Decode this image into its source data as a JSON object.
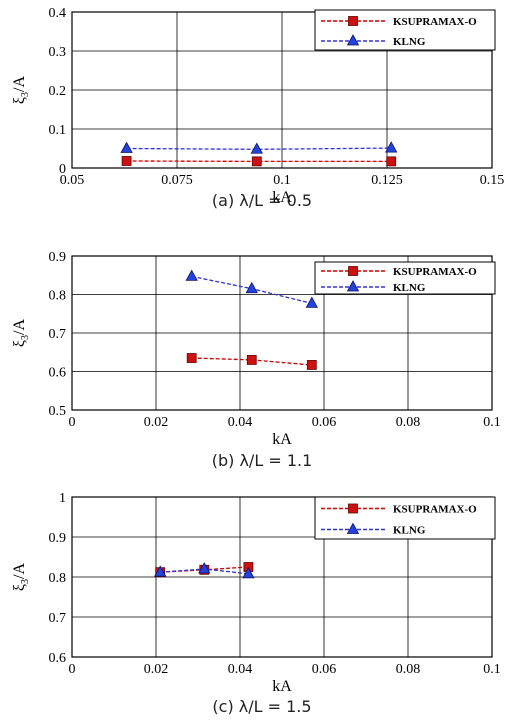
{
  "chart_data": [
    {
      "type": "line",
      "caption": "(a)  λ/L = 0.5",
      "xlabel": "kA",
      "ylabel": "ξ3/A",
      "xlim": [
        0.05,
        0.15
      ],
      "ylim": [
        0,
        0.4
      ],
      "xticks": [
        0.05,
        0.075,
        0.1,
        0.125,
        0.15
      ],
      "xtick_labels": [
        "0.05",
        "0.075",
        "0.1",
        "0.125",
        "0.15"
      ],
      "yticks": [
        0,
        0.1,
        0.2,
        0.3,
        0.4
      ],
      "ytick_labels": [
        "0",
        "0.1",
        "0.2",
        "0.3",
        "0.4"
      ],
      "grid": true,
      "legend_position": "top-right",
      "series": [
        {
          "name": "KSUPRAMAX-O",
          "x": [
            0.063,
            0.094,
            0.126
          ],
          "y": [
            0.018,
            0.017,
            0.017
          ]
        },
        {
          "name": "KLNG",
          "x": [
            0.063,
            0.094,
            0.126
          ],
          "y": [
            0.05,
            0.048,
            0.051
          ]
        }
      ]
    },
    {
      "type": "line",
      "caption": "(b)  λ/L = 1.1",
      "xlabel": "kA",
      "ylabel": "ξ3/A",
      "xlim": [
        0,
        0.1
      ],
      "ylim": [
        0.5,
        0.9
      ],
      "xticks": [
        0,
        0.02,
        0.04,
        0.06,
        0.08,
        0.1
      ],
      "xtick_labels": [
        "0",
        "0.02",
        "0.04",
        "0.06",
        "0.08",
        "0.1"
      ],
      "yticks": [
        0.5,
        0.6,
        0.7,
        0.8,
        0.9
      ],
      "ytick_labels": [
        "0.5",
        "0.6",
        "0.7",
        "0.8",
        "0.9"
      ],
      "grid": true,
      "legend_position": "right",
      "series": [
        {
          "name": "KSUPRAMAX-O",
          "x": [
            0.0285,
            0.0428,
            0.0571
          ],
          "y": [
            0.635,
            0.63,
            0.617
          ]
        },
        {
          "name": "KLNG",
          "x": [
            0.0285,
            0.0428,
            0.0571
          ],
          "y": [
            0.847,
            0.815,
            0.777
          ]
        }
      ]
    },
    {
      "type": "line",
      "caption": "(c)  λ/L = 1.5",
      "xlabel": "kA",
      "ylabel": "ξ3/A",
      "xlim": [
        0,
        0.1
      ],
      "ylim": [
        0.6,
        1
      ],
      "xticks": [
        0,
        0.02,
        0.04,
        0.06,
        0.08,
        0.1
      ],
      "xtick_labels": [
        "0",
        "0.02",
        "0.04",
        "0.06",
        "0.08",
        "0.1"
      ],
      "yticks": [
        0.6,
        0.7,
        0.8,
        0.9,
        1
      ],
      "ytick_labels": [
        "0.6",
        "0.7",
        "0.8",
        "0.9",
        "1"
      ],
      "grid": true,
      "legend_position": "top-right",
      "series": [
        {
          "name": "KSUPRAMAX-O",
          "x": [
            0.021,
            0.0315,
            0.042
          ],
          "y": [
            0.812,
            0.818,
            0.825
          ]
        },
        {
          "name": "KLNG",
          "x": [
            0.021,
            0.0315,
            0.042
          ],
          "y": [
            0.812,
            0.82,
            0.808
          ]
        }
      ]
    }
  ],
  "colors": {
    "ksupramax": "#cc0000",
    "ksupramax_fill": "#cc1111",
    "klng": "#3333cc",
    "klng_fill": "#2244dd"
  }
}
